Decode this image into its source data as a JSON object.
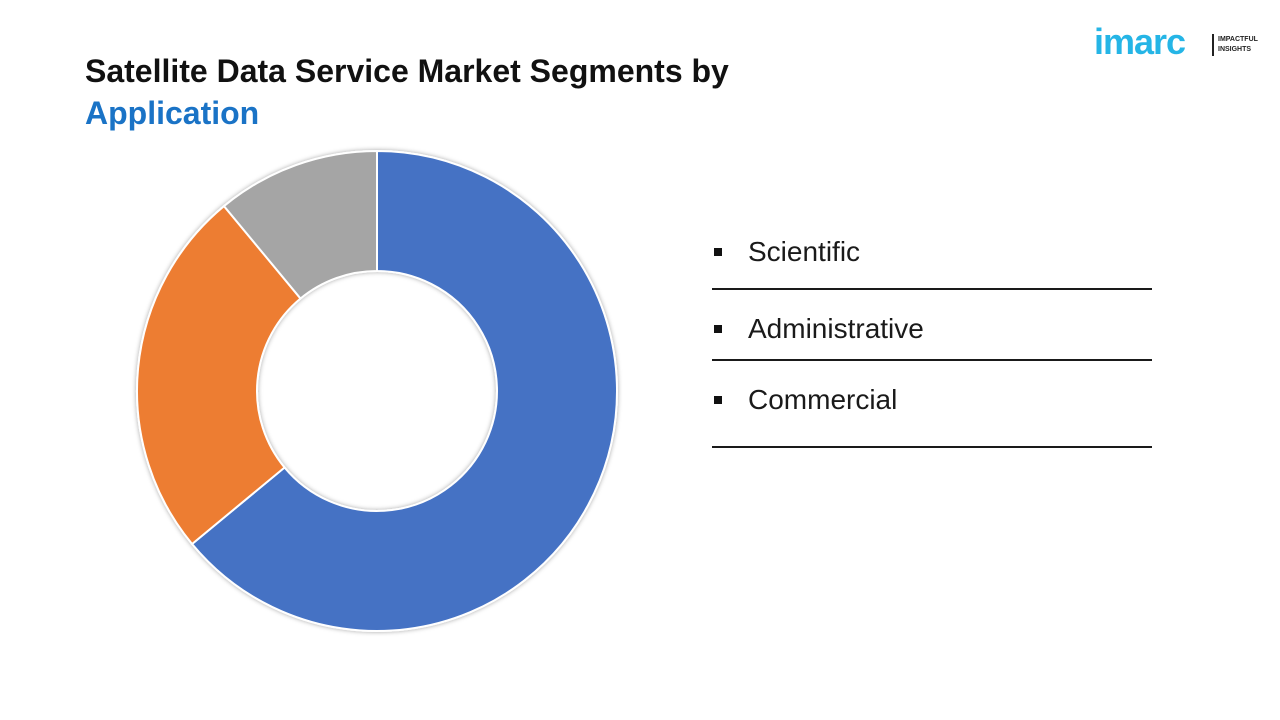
{
  "header": {
    "title_line1": "Satellite Data Service Market Segments by",
    "title_line2": "Application"
  },
  "logo": {
    "word": "imarc",
    "tag_line1": "IMPACTFUL",
    "tag_line2": "INSIGHTS",
    "color": "#25b5e6"
  },
  "chart_data": {
    "type": "pie",
    "donut": true,
    "categories": [
      "Scientific",
      "Administrative",
      "Commercial"
    ],
    "values": [
      64,
      25,
      11
    ],
    "colors": [
      "#4472c4",
      "#ed7d31",
      "#a5a5a5"
    ],
    "legend_position": "right"
  }
}
